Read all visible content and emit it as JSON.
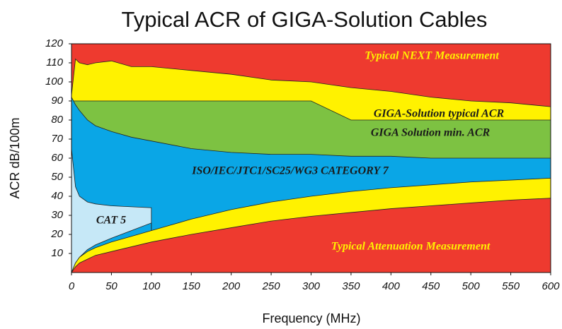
{
  "chart_data": {
    "type": "area",
    "title": "Typical ACR of GIGA-Solution Cables",
    "xlabel": "Frequency (MHz)",
    "ylabel": "ACR dB/100m",
    "background": "#ee3a2f",
    "x": [
      0,
      5,
      10,
      20,
      30,
      50,
      75,
      100,
      150,
      200,
      250,
      300,
      350,
      400,
      450,
      500,
      550,
      600
    ],
    "series": [
      {
        "color": "#fff200",
        "values": [
          93,
          112,
          110,
          109,
          110,
          111,
          108,
          108,
          106,
          104,
          101,
          100,
          97,
          95,
          92,
          90,
          89,
          87
        ]
      },
      {
        "color": "#7dc242",
        "values": [
          90,
          90,
          90,
          90,
          90,
          90,
          90,
          90,
          90,
          90,
          90,
          90,
          80,
          80,
          80,
          80,
          80,
          80
        ]
      },
      {
        "color": "#0aa6e6",
        "values": [
          92,
          88,
          85,
          80,
          77,
          74,
          71,
          69,
          65,
          63,
          62,
          62,
          61,
          61,
          60,
          60,
          60,
          60
        ]
      },
      {
        "color": "#c6e8f7",
        "values": [
          65,
          45,
          40,
          37,
          36,
          35,
          34.5,
          34,
          null,
          null,
          null,
          null,
          null,
          null,
          null,
          null,
          null,
          null
        ]
      },
      {
        "color": "#0aa6e6",
        "values": [
          0,
          5,
          8,
          12,
          14.5,
          18,
          22,
          26,
          null,
          null,
          null,
          null,
          null,
          null,
          null,
          null,
          null,
          null
        ]
      },
      {
        "color": "#fff200",
        "values": [
          0,
          5,
          8,
          11,
          13,
          16,
          19,
          22,
          28,
          33,
          37,
          40,
          42.5,
          44.5,
          46,
          47.5,
          48.5,
          49.5
        ]
      },
      {
        "color": "#ee3a2f",
        "values": [
          0,
          3,
          5,
          7,
          9,
          11,
          13.5,
          16,
          20,
          23.5,
          27,
          29.5,
          31.5,
          33.5,
          35,
          36.5,
          38,
          39
        ]
      }
    ],
    "annotations": [
      {
        "text": "Typical NEXT Measurement",
        "color": "#fff200"
      },
      {
        "text": "GIGA-Solution typical ACR",
        "color": "#1a1a1a"
      },
      {
        "text": "GIGA  Solution  min. ACR",
        "color": "#1a1a1a"
      },
      {
        "text": "ISO/IEC/JTC1/SC25/WG3 CATEGORY 7",
        "color": "#1a1a1a"
      },
      {
        "text": "CAT 5",
        "color": "#1a1a1a"
      },
      {
        "text": "Typical Attenuation Measurement",
        "color": "#fff200"
      }
    ],
    "xlim": [
      0,
      600
    ],
    "xticks": [
      0,
      50,
      100,
      150,
      200,
      250,
      300,
      350,
      400,
      450,
      500,
      550,
      600
    ],
    "ylim": [
      0,
      120
    ],
    "yticks": [
      10,
      20,
      30,
      40,
      50,
      60,
      70,
      80,
      90,
      100,
      110,
      120
    ]
  }
}
